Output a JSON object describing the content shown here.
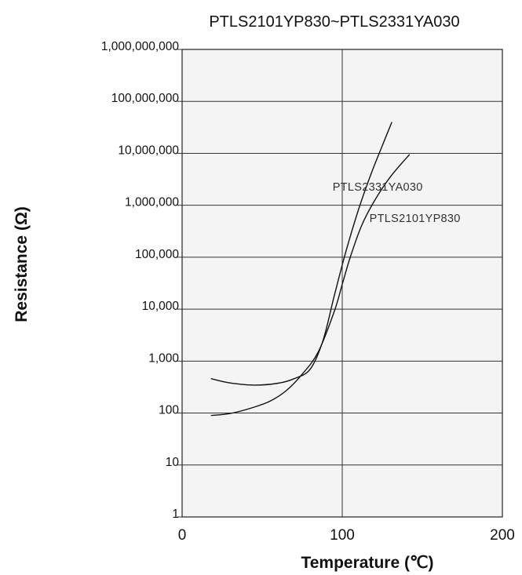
{
  "chart_data": {
    "type": "line",
    "title": "PTLS2101YP830~PTLS2331YA030",
    "xlabel": "Temperature (℃)",
    "ylabel": "Resistance (Ω)",
    "x_scale": "linear",
    "y_scale": "log",
    "xlim": [
      0,
      200
    ],
    "ylim": [
      1,
      1000000000
    ],
    "x_ticks": [
      0,
      100,
      200
    ],
    "x_tick_labels": [
      "0",
      "100",
      "200"
    ],
    "y_ticks": [
      1,
      10,
      100,
      1000,
      10000,
      100000,
      1000000,
      10000000,
      100000000,
      1000000000
    ],
    "y_tick_labels": [
      "1",
      "10",
      "100",
      "1,000",
      "10,000",
      "100,000",
      "1,000,000",
      "10,000,000",
      "100,000,000",
      "1,000,000,000"
    ],
    "grid": {
      "horizontal": true,
      "vertical": true
    },
    "series": [
      {
        "name": "PTLS2331YA030",
        "points": [
          [
            18,
            460
          ],
          [
            30,
            380
          ],
          [
            45,
            345
          ],
          [
            60,
            375
          ],
          [
            70,
            460
          ],
          [
            80,
            700
          ],
          [
            88,
            2500
          ],
          [
            95,
            18000
          ],
          [
            102,
            120000
          ],
          [
            110,
            800000
          ],
          [
            118,
            4000000
          ],
          [
            125,
            14000000
          ],
          [
            131,
            40000000
          ]
        ]
      },
      {
        "name": "PTLS2101YP830",
        "points": [
          [
            18,
            90
          ],
          [
            30,
            98
          ],
          [
            45,
            130
          ],
          [
            55,
            170
          ],
          [
            65,
            270
          ],
          [
            75,
            560
          ],
          [
            85,
            1500
          ],
          [
            95,
            9000
          ],
          [
            100,
            30000
          ],
          [
            105,
            100000
          ],
          [
            112,
            400000
          ],
          [
            120,
            1200000
          ],
          [
            130,
            3500000
          ],
          [
            142,
            9500000
          ]
        ]
      }
    ]
  }
}
